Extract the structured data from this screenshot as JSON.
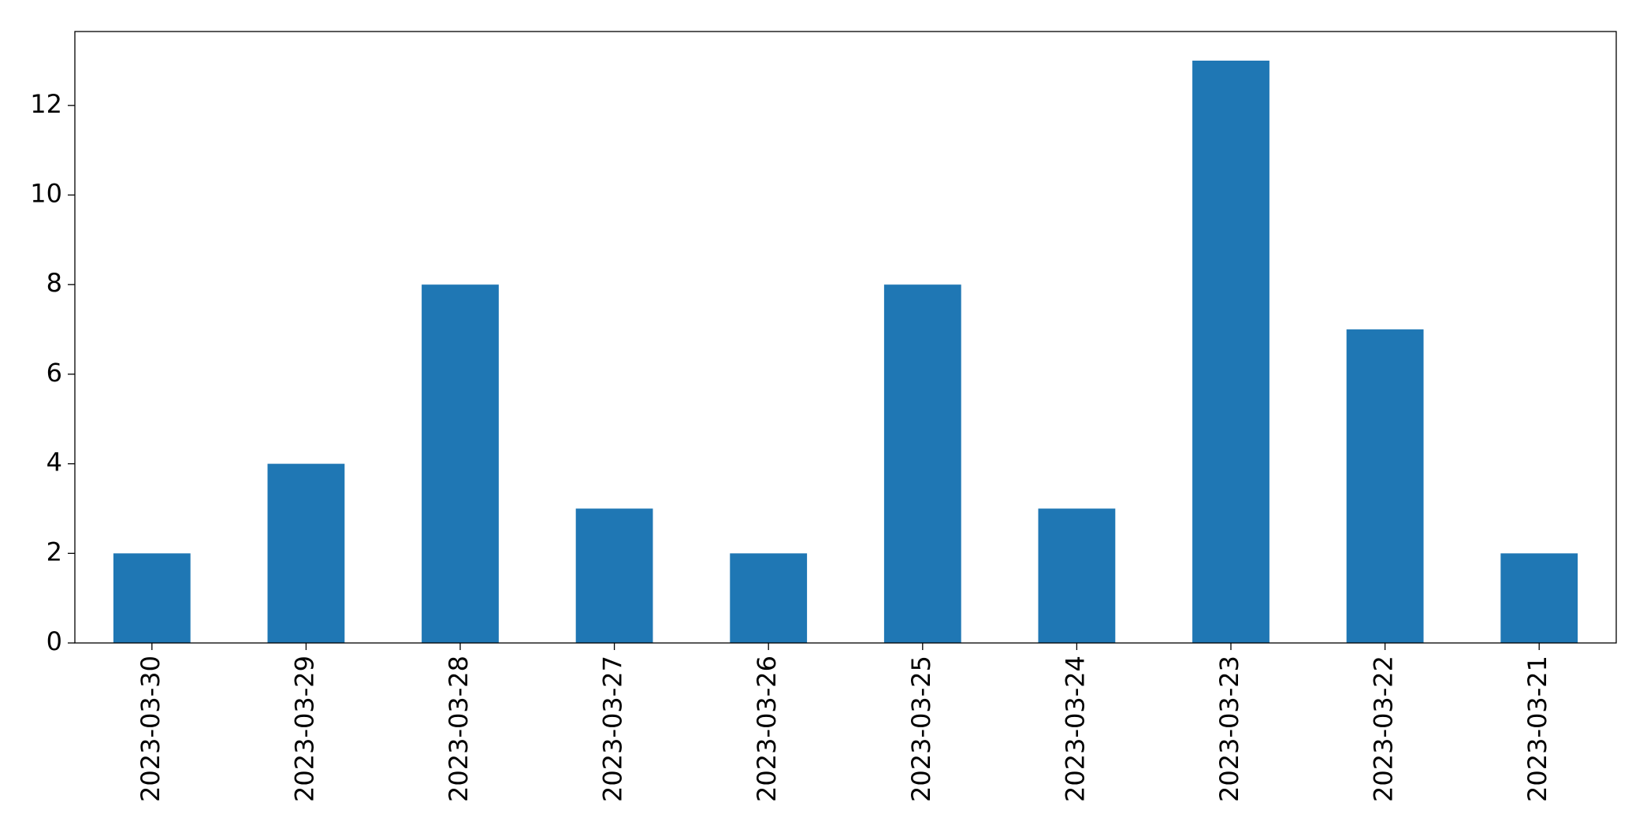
{
  "chart_data": {
    "type": "bar",
    "categories": [
      "2023-03-30",
      "2023-03-29",
      "2023-03-28",
      "2023-03-27",
      "2023-03-26",
      "2023-03-25",
      "2023-03-24",
      "2023-03-23",
      "2023-03-22",
      "2023-03-21"
    ],
    "values": [
      2,
      4,
      8,
      3,
      2,
      8,
      3,
      13,
      7,
      2
    ],
    "color": "#1f77b4",
    "ylim": [
      0,
      13.65
    ],
    "yticks": [
      0,
      2,
      4,
      6,
      8,
      10,
      12
    ],
    "grid": false
  }
}
